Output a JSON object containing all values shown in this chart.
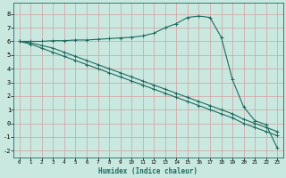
{
  "xlabel": "Humidex (Indice chaleur)",
  "bg_color": "#c8e8e0",
  "grid_color": "#d4a0a0",
  "line_color": "#1e6b60",
  "xlim": [
    -0.5,
    23.5
  ],
  "ylim": [
    -2.5,
    8.8
  ],
  "xticks": [
    0,
    1,
    2,
    3,
    4,
    5,
    6,
    7,
    8,
    9,
    10,
    11,
    12,
    13,
    14,
    15,
    16,
    17,
    18,
    19,
    20,
    21,
    22,
    23
  ],
  "yticks": [
    -2,
    -1,
    0,
    1,
    2,
    3,
    4,
    5,
    6,
    7,
    8
  ],
  "curve1_x": [
    0,
    1,
    2,
    3,
    4,
    5,
    6,
    7,
    8,
    9,
    10,
    11,
    12,
    13,
    14,
    15,
    16,
    17,
    18,
    19,
    20,
    21,
    22,
    23
  ],
  "curve1_y": [
    6.0,
    6.0,
    6.0,
    6.05,
    6.05,
    6.1,
    6.1,
    6.15,
    6.2,
    6.25,
    6.3,
    6.4,
    6.6,
    7.0,
    7.3,
    7.75,
    7.85,
    7.75,
    6.3,
    3.2,
    1.2,
    0.2,
    -0.1,
    -1.8
  ],
  "curve2_x": [
    0,
    1,
    2,
    3,
    4,
    5,
    6,
    7,
    8,
    9,
    10,
    11,
    12,
    13,
    14,
    15,
    16,
    17,
    18,
    19,
    20,
    21,
    22,
    23
  ],
  "curve2_y": [
    6.0,
    5.9,
    5.7,
    5.5,
    5.2,
    4.9,
    4.6,
    4.3,
    4.0,
    3.7,
    3.4,
    3.1,
    2.8,
    2.5,
    2.2,
    1.9,
    1.6,
    1.3,
    1.0,
    0.7,
    0.3,
    0.0,
    -0.3,
    -0.6
  ],
  "curve3_x": [
    0,
    1,
    2,
    3,
    4,
    5,
    6,
    7,
    8,
    9,
    10,
    11,
    12,
    13,
    14,
    15,
    16,
    17,
    18,
    19,
    20,
    21,
    22,
    23
  ],
  "curve3_y": [
    6.0,
    5.8,
    5.5,
    5.2,
    4.9,
    4.6,
    4.3,
    4.0,
    3.7,
    3.4,
    3.1,
    2.8,
    2.5,
    2.2,
    1.9,
    1.6,
    1.3,
    1.0,
    0.7,
    0.4,
    0.0,
    -0.3,
    -0.6,
    -0.9
  ]
}
